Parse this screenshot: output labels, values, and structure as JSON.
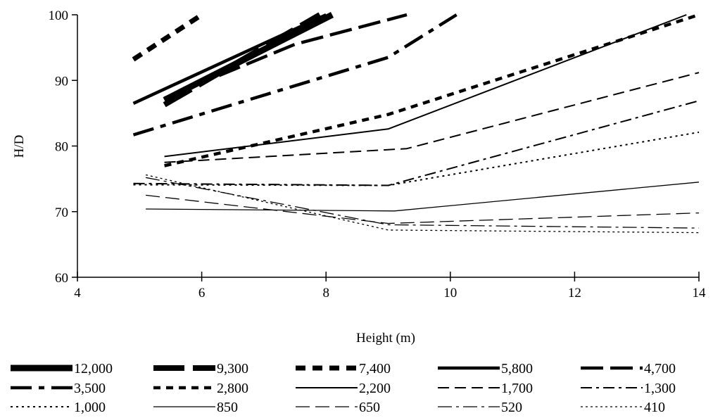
{
  "chart_data": {
    "type": "line",
    "title": "",
    "xlabel": "Height (m)",
    "ylabel": "H/D",
    "xlim": [
      4,
      14
    ],
    "ylim": [
      60,
      100
    ],
    "xticks": [
      4,
      6,
      8,
      10,
      12,
      14
    ],
    "yticks": [
      60,
      70,
      80,
      90,
      100
    ],
    "grid": false,
    "legend_position": "bottom",
    "series": [
      {
        "name": "12,000",
        "style": "thick-solid",
        "points": [
          [
            5.4,
            87.0
          ],
          [
            8.1,
            100.0
          ]
        ]
      },
      {
        "name": "9,300",
        "style": "thick-dash",
        "points": [
          [
            5.4,
            86.3
          ],
          [
            7.9,
            100.0
          ]
        ]
      },
      {
        "name": "7,400",
        "style": "thick-short-dash",
        "points": [
          [
            4.9,
            93.2
          ],
          [
            6.0,
            100.0
          ]
        ]
      },
      {
        "name": "5,800",
        "style": "solid-bold",
        "points": [
          [
            4.9,
            86.5
          ],
          [
            8.0,
            100.0
          ]
        ]
      },
      {
        "name": "4,700",
        "style": "long-dash-bold",
        "points": [
          [
            5.4,
            87.3
          ],
          [
            7.5,
            95.5
          ],
          [
            9.3,
            100.0
          ]
        ]
      },
      {
        "name": "3,500",
        "style": "dash-dot-bold",
        "points": [
          [
            4.9,
            81.7
          ],
          [
            9.0,
            93.5
          ],
          [
            10.1,
            100.0
          ]
        ]
      },
      {
        "name": "2,800",
        "style": "short-dash-bold",
        "points": [
          [
            5.4,
            77.0
          ],
          [
            9.0,
            84.8
          ],
          [
            14.0,
            100.0
          ]
        ]
      },
      {
        "name": "2,200",
        "style": "solid",
        "points": [
          [
            5.4,
            78.4
          ],
          [
            9.0,
            82.6
          ],
          [
            13.8,
            100.0
          ]
        ]
      },
      {
        "name": "1,700",
        "style": "dash",
        "points": [
          [
            5.4,
            77.5
          ],
          [
            9.3,
            79.6
          ],
          [
            14.0,
            91.2
          ]
        ]
      },
      {
        "name": "1,300",
        "style": "dash-dot",
        "points": [
          [
            4.9,
            74.3
          ],
          [
            9.0,
            74.0
          ],
          [
            14.0,
            86.9
          ]
        ]
      },
      {
        "name": "1,000",
        "style": "dot",
        "points": [
          [
            4.9,
            74.1
          ],
          [
            9.0,
            74.0
          ],
          [
            14.0,
            82.1
          ]
        ]
      },
      {
        "name": "850",
        "style": "thin-solid",
        "points": [
          [
            5.1,
            70.4
          ],
          [
            9.1,
            70.1
          ],
          [
            14.0,
            74.5
          ]
        ]
      },
      {
        "name": "650",
        "style": "thin-dash",
        "points": [
          [
            5.1,
            72.5
          ],
          [
            9.0,
            68.2
          ],
          [
            14.0,
            69.8
          ]
        ]
      },
      {
        "name": "520",
        "style": "thin-dash-dot",
        "points": [
          [
            5.1,
            75.2
          ],
          [
            9.0,
            68.0
          ],
          [
            14.0,
            67.5
          ]
        ]
      },
      {
        "name": "410",
        "style": "thin-dot",
        "points": [
          [
            5.1,
            75.6
          ],
          [
            9.0,
            67.2
          ],
          [
            14.0,
            66.8
          ]
        ]
      }
    ]
  }
}
